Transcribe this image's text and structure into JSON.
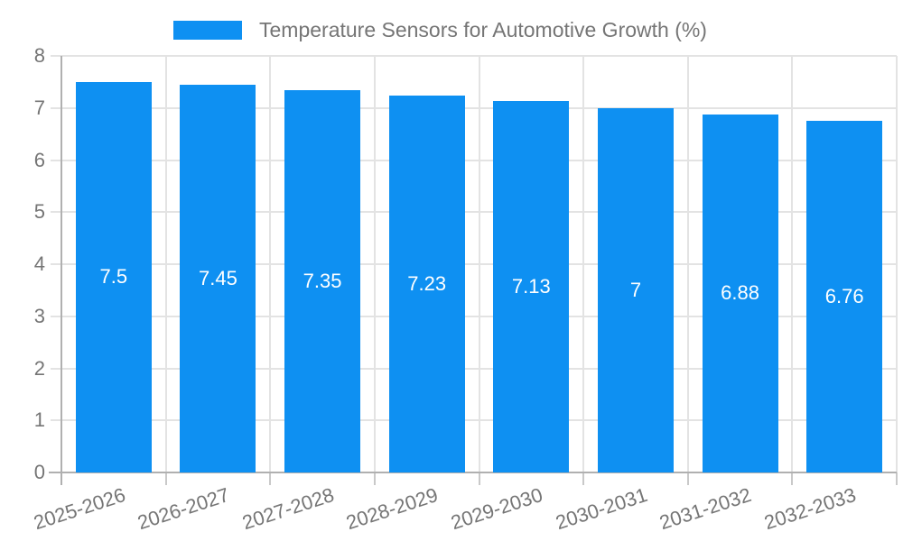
{
  "chart_data": {
    "type": "bar",
    "title": "Temperature Sensors for Automotive Growth (%)",
    "categories": [
      "2025-2026",
      "2026-2027",
      "2027-2028",
      "2028-2029",
      "2029-2030",
      "2030-2031",
      "2031-2032",
      "2032-2033"
    ],
    "values": [
      7.5,
      7.45,
      7.35,
      7.23,
      7.13,
      7,
      6.88,
      6.76
    ],
    "value_labels": [
      "7.5",
      "7.45",
      "7.35",
      "7.23",
      "7.13",
      "7",
      "6.88",
      "6.76"
    ],
    "xlabel": "",
    "ylabel": "",
    "ylim": [
      0,
      8
    ],
    "yticks": [
      0,
      1,
      2,
      3,
      4,
      5,
      6,
      7,
      8
    ],
    "grid": true,
    "legend_position": "top",
    "series_name": "Temperature Sensors for Automotive Growth (%)"
  },
  "colors": {
    "bar": "#0e90f2",
    "gridline": "#e3e3e3",
    "axis": "#b0b0b0",
    "tick_stub": "#c9c9c9",
    "text": "#757575",
    "value_label": "#ffffff",
    "background": "#ffffff"
  }
}
